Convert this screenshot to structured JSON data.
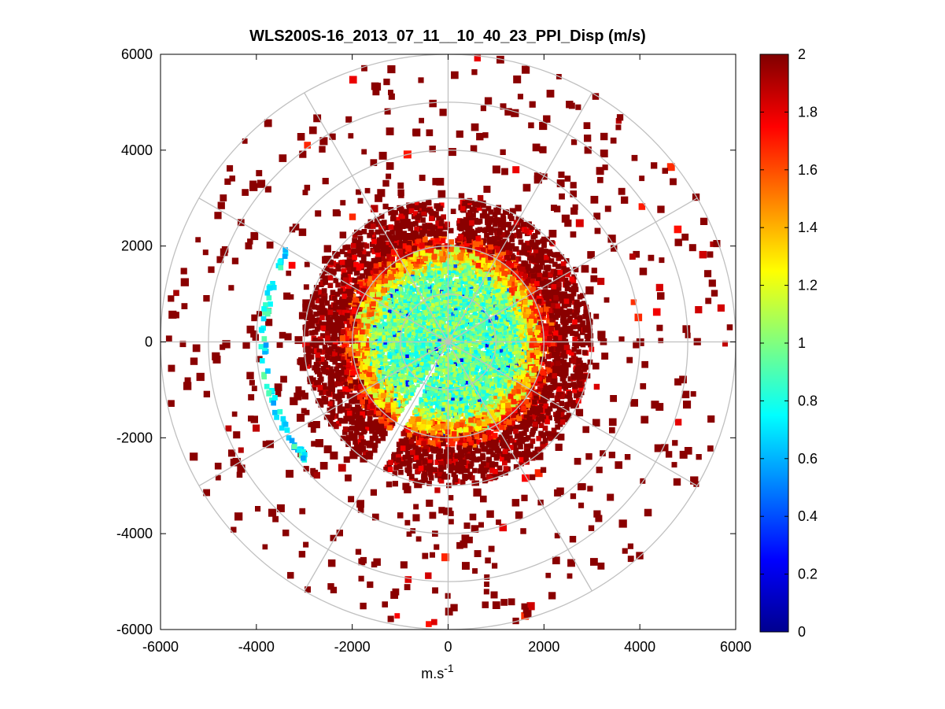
{
  "chart_data": {
    "type": "heatmap",
    "title": "WLS200S-16_2013_07_11__10_40_23_PPI_Disp (m/s)",
    "xlabel": "m.s",
    "xlabel_superscript": "-1",
    "ylabel": "",
    "xlim": [
      -6000,
      6000
    ],
    "ylim": [
      -6000,
      6000
    ],
    "x_ticks": [
      -6000,
      -4000,
      -2000,
      0,
      2000,
      4000,
      6000
    ],
    "y_ticks": [
      6000,
      4000,
      2000,
      0,
      -2000,
      -4000,
      -6000
    ],
    "polar_grid": {
      "rings": [
        1000,
        2000,
        3000,
        4000,
        5000,
        6000
      ],
      "spoke_angles_deg": [
        0,
        30,
        60,
        90,
        120,
        150,
        180,
        210,
        240,
        270,
        300,
        330
      ]
    },
    "colorbar": {
      "colormap": "jet",
      "range": [
        0,
        2
      ],
      "ticks": [
        0,
        0.2,
        0.4,
        0.6,
        0.8,
        1,
        1.2,
        1.4,
        1.6,
        1.8,
        2
      ],
      "tick_labels": [
        "0",
        "0.2",
        "0.4",
        "0.6",
        "0.8",
        "1",
        "1.2",
        "1.4",
        "1.6",
        "1.8",
        "2"
      ]
    },
    "field": {
      "description_of_pattern": "dense core of values ~0.7-1.2 within ~2000 m range, red/dark-red (1.7-2) ring from ~2000 to ~3000 m, sparse dark-red cells out to ~6000 m, arc of cyan/green cells near x=-3800",
      "core_radius": 2000,
      "ring_outer_radius": 3000,
      "max_range": 6000,
      "core_value_mean": 0.95,
      "ring_value": 1.9,
      "arc_center_x": -3800,
      "arc_value": 0.75
    }
  }
}
